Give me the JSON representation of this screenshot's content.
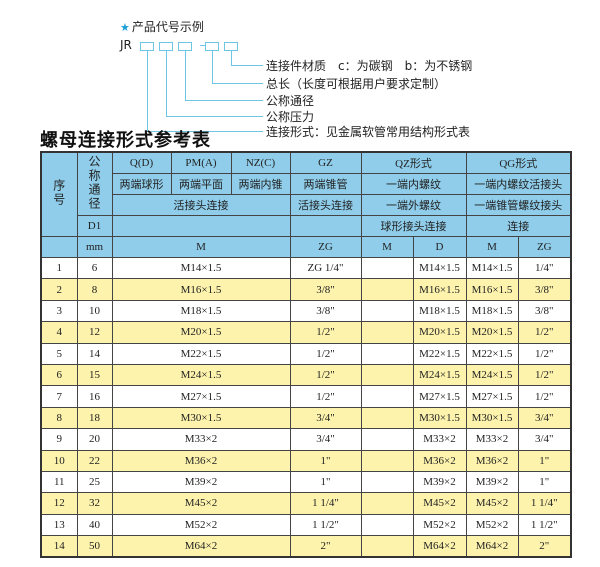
{
  "legend": {
    "title": "产品代号示例",
    "star_icon": "star-icon",
    "code_prefix": "JR",
    "labels": [
      "连接件材质　c：为碳钢　b：为不锈钢",
      "总长（长度可根据用户要求定制）",
      "公称通径",
      "公称压力",
      "连接形式：见金属软管常用结构形式表"
    ],
    "line_color": "#6cc6e4"
  },
  "title": "螺母连接形式参考表",
  "table": {
    "header_color": "#8fcdea",
    "stripe_color": "#fdf3ad",
    "h_seq": "序号",
    "h_dn": "公称通径",
    "h_d1": "D1",
    "h_mm": "mm",
    "types": [
      "Q(D)",
      "PM(A)",
      "NZ(C)",
      "GZ",
      "QZ形式",
      "QG形式"
    ],
    "desc1": [
      "两端球形",
      "两端平面",
      "两端内锥",
      "两端锥管",
      "一端内螺纹",
      "一端内螺纹活接头"
    ],
    "desc2": [
      "活接头连接",
      "活接头连接",
      "一端外螺纹",
      "一端锥管螺纹接头"
    ],
    "desc3": [
      "球形接头连接",
      "连接"
    ],
    "units": [
      "M",
      "ZG",
      "M",
      "D",
      "M",
      "ZG"
    ],
    "rows": [
      {
        "seq": "1",
        "dn": "6",
        "m": "M14×1.5",
        "zg": "ZG 1/4\"",
        "qz_m": "",
        "qz_d": "M14×1.5",
        "qg_m": "M14×1.5",
        "qg_zg": "1/4\""
      },
      {
        "seq": "2",
        "dn": "8",
        "m": "M16×1.5",
        "zg": "3/8\"",
        "qz_m": "",
        "qz_d": "M16×1.5",
        "qg_m": "M16×1.5",
        "qg_zg": "3/8\""
      },
      {
        "seq": "3",
        "dn": "10",
        "m": "M18×1.5",
        "zg": "3/8\"",
        "qz_m": "",
        "qz_d": "M18×1.5",
        "qg_m": "M18×1.5",
        "qg_zg": "3/8\""
      },
      {
        "seq": "4",
        "dn": "12",
        "m": "M20×1.5",
        "zg": "1/2\"",
        "qz_m": "",
        "qz_d": "M20×1.5",
        "qg_m": "M20×1.5",
        "qg_zg": "1/2\""
      },
      {
        "seq": "5",
        "dn": "14",
        "m": "M22×1.5",
        "zg": "1/2\"",
        "qz_m": "",
        "qz_d": "M22×1.5",
        "qg_m": "M22×1.5",
        "qg_zg": "1/2\""
      },
      {
        "seq": "6",
        "dn": "15",
        "m": "M24×1.5",
        "zg": "1/2\"",
        "qz_m": "",
        "qz_d": "M24×1.5",
        "qg_m": "M24×1.5",
        "qg_zg": "1/2\""
      },
      {
        "seq": "7",
        "dn": "16",
        "m": "M27×1.5",
        "zg": "1/2\"",
        "qz_m": "",
        "qz_d": "M27×1.5",
        "qg_m": "M27×1.5",
        "qg_zg": "1/2\""
      },
      {
        "seq": "8",
        "dn": "18",
        "m": "M30×1.5",
        "zg": "3/4\"",
        "qz_m": "",
        "qz_d": "M30×1.5",
        "qg_m": "M30×1.5",
        "qg_zg": "3/4\""
      },
      {
        "seq": "9",
        "dn": "20",
        "m": "M33×2",
        "zg": "3/4\"",
        "qz_m": "",
        "qz_d": "M33×2",
        "qg_m": "M33×2",
        "qg_zg": "3/4\""
      },
      {
        "seq": "10",
        "dn": "22",
        "m": "M36×2",
        "zg": "1\"",
        "qz_m": "",
        "qz_d": "M36×2",
        "qg_m": "M36×2",
        "qg_zg": "1\""
      },
      {
        "seq": "11",
        "dn": "25",
        "m": "M39×2",
        "zg": "1\"",
        "qz_m": "",
        "qz_d": "M39×2",
        "qg_m": "M39×2",
        "qg_zg": "1\""
      },
      {
        "seq": "12",
        "dn": "32",
        "m": "M45×2",
        "zg": "1 1/4\"",
        "qz_m": "",
        "qz_d": "M45×2",
        "qg_m": "M45×2",
        "qg_zg": "1 1/4\""
      },
      {
        "seq": "13",
        "dn": "40",
        "m": "M52×2",
        "zg": "1 1/2\"",
        "qz_m": "",
        "qz_d": "M52×2",
        "qg_m": "M52×2",
        "qg_zg": "1 1/2\""
      },
      {
        "seq": "14",
        "dn": "50",
        "m": "M64×2",
        "zg": "2\"",
        "qz_m": "",
        "qz_d": "M64×2",
        "qg_m": "M64×2",
        "qg_zg": "2\""
      }
    ]
  }
}
